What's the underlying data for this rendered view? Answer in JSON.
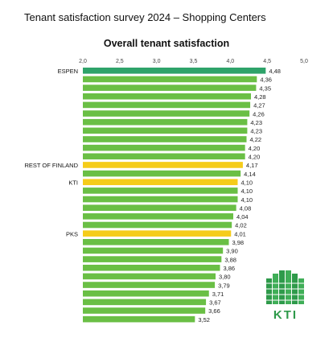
{
  "header": {
    "title": "Tenant satisfaction survey 2024 – Shopping Centers"
  },
  "logo": {
    "text": "KTI",
    "color": "#2e9a4a"
  },
  "chart_data": {
    "type": "bar",
    "orientation": "horizontal",
    "title": "Overall tenant satisfaction",
    "xlim": [
      2.0,
      5.0
    ],
    "ticks": [
      "2,0",
      "2,5",
      "3,0",
      "3,5",
      "4,0",
      "4,5",
      "5,0"
    ],
    "tick_values": [
      2.0,
      2.5,
      3.0,
      3.5,
      4.0,
      4.5,
      5.0
    ],
    "grid": false,
    "colors": {
      "default": "#6abf45",
      "highlight_top": "#2ea36a",
      "highlight_ref": "#f5cc1a"
    },
    "bars": [
      {
        "label": "ESPEN",
        "value": 4.48,
        "value_label": "4,48",
        "highlight": "top"
      },
      {
        "label": "",
        "value": 4.36,
        "value_label": "4,36"
      },
      {
        "label": "",
        "value": 4.35,
        "value_label": "4,35"
      },
      {
        "label": "",
        "value": 4.28,
        "value_label": "4,28"
      },
      {
        "label": "",
        "value": 4.27,
        "value_label": "4,27"
      },
      {
        "label": "",
        "value": 4.26,
        "value_label": "4,26"
      },
      {
        "label": "",
        "value": 4.23,
        "value_label": "4,23"
      },
      {
        "label": "",
        "value": 4.23,
        "value_label": "4,23"
      },
      {
        "label": "",
        "value": 4.22,
        "value_label": "4,22"
      },
      {
        "label": "",
        "value": 4.2,
        "value_label": "4,20"
      },
      {
        "label": "",
        "value": 4.2,
        "value_label": "4,20"
      },
      {
        "label": "REST OF FINLAND",
        "value": 4.17,
        "value_label": "4,17",
        "highlight": "ref"
      },
      {
        "label": "",
        "value": 4.14,
        "value_label": "4,14"
      },
      {
        "label": "KTI",
        "value": 4.1,
        "value_label": "4,10",
        "highlight": "ref"
      },
      {
        "label": "",
        "value": 4.1,
        "value_label": "4,10"
      },
      {
        "label": "",
        "value": 4.1,
        "value_label": "4,10"
      },
      {
        "label": "",
        "value": 4.08,
        "value_label": "4,08"
      },
      {
        "label": "",
        "value": 4.04,
        "value_label": "4,04"
      },
      {
        "label": "",
        "value": 4.02,
        "value_label": "4,02"
      },
      {
        "label": "PKS",
        "value": 4.01,
        "value_label": "4,01",
        "highlight": "ref"
      },
      {
        "label": "",
        "value": 3.98,
        "value_label": "3,98"
      },
      {
        "label": "",
        "value": 3.9,
        "value_label": "3,90"
      },
      {
        "label": "",
        "value": 3.88,
        "value_label": "3,88"
      },
      {
        "label": "",
        "value": 3.86,
        "value_label": "3,86"
      },
      {
        "label": "",
        "value": 3.8,
        "value_label": "3,80"
      },
      {
        "label": "",
        "value": 3.79,
        "value_label": "3,79"
      },
      {
        "label": "",
        "value": 3.71,
        "value_label": "3,71"
      },
      {
        "label": "",
        "value": 3.67,
        "value_label": "3,67"
      },
      {
        "label": "",
        "value": 3.66,
        "value_label": "3,66"
      },
      {
        "label": "",
        "value": 3.52,
        "value_label": "3,52"
      }
    ]
  }
}
